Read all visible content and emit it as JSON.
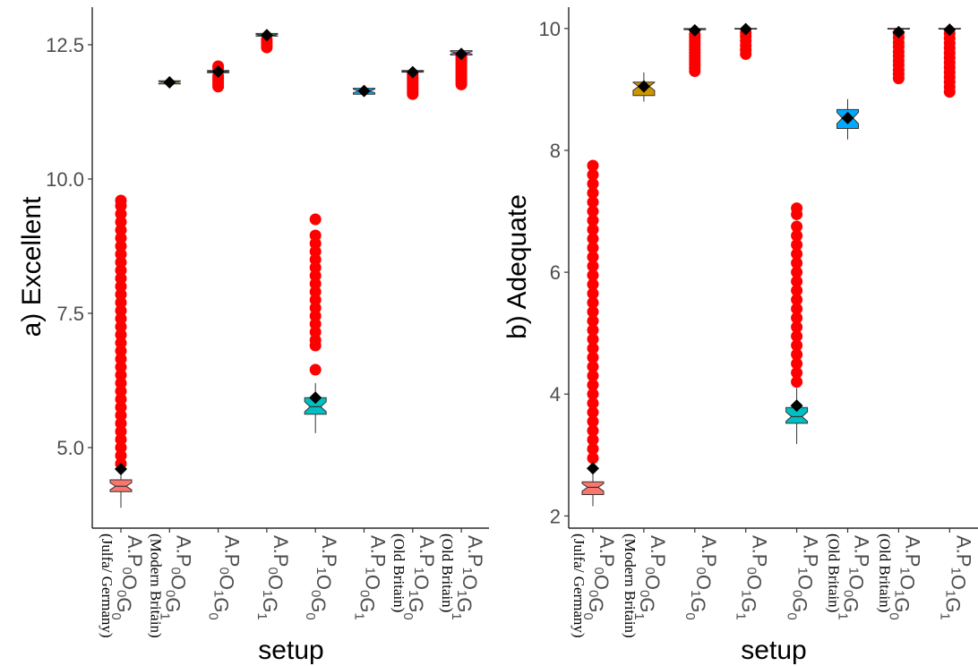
{
  "chart_data": [
    {
      "type": "boxplot",
      "panel": "a",
      "ylabel": "a) Excellent",
      "xlabel": "setup",
      "ylim": [
        3.5,
        13.2
      ],
      "yticks": [
        5.0,
        7.5,
        10.0,
        12.5
      ],
      "ytick_labels": [
        "5.0",
        "7.5",
        "10.0",
        "12.5"
      ],
      "categories": [
        {
          "main": "A.P",
          "s1": "0",
          "m2": "O",
          "s2": "0",
          "m3": "G",
          "s3": "0",
          "note": "(Julfa/ Germany)"
        },
        {
          "main": "A.P",
          "s1": "0",
          "m2": "O",
          "s2": "0",
          "m3": "G",
          "s3": "1",
          "note": "(Modern Britain)"
        },
        {
          "main": "A.P",
          "s1": "0",
          "m2": "O",
          "s2": "1",
          "m3": "G",
          "s3": "0",
          "note": ""
        },
        {
          "main": "A.P",
          "s1": "0",
          "m2": "O",
          "s2": "1",
          "m3": "G",
          "s3": "1",
          "note": ""
        },
        {
          "main": "A.P",
          "s1": "1",
          "m2": "O",
          "s2": "0",
          "m3": "G",
          "s3": "0",
          "note": ""
        },
        {
          "main": "A.P",
          "s1": "1",
          "m2": "O",
          "s2": "0",
          "m3": "G",
          "s3": "1",
          "note": ""
        },
        {
          "main": "A.P",
          "s1": "1",
          "m2": "O",
          "s2": "1",
          "m3": "G",
          "s3": "0",
          "note": "(Old Britain)"
        },
        {
          "main": "A.P",
          "s1": "1",
          "m2": "O",
          "s2": "1",
          "m3": "G",
          "s3": "1",
          "note": "(Old Britain)"
        }
      ],
      "boxes": [
        {
          "color": "#F8766D",
          "lw": 3.88,
          "q1": 4.18,
          "median": 4.28,
          "q3": 4.4,
          "uw": 4.58,
          "mean": 4.6,
          "outliers": [
            4.7,
            4.85,
            5.0,
            5.15,
            5.3,
            5.45,
            5.6,
            5.75,
            5.9,
            6.05,
            6.2,
            6.35,
            6.5,
            6.65,
            6.8,
            6.95,
            7.1,
            7.25,
            7.4,
            7.55,
            7.7,
            7.85,
            8.0,
            8.15,
            8.3,
            8.45,
            8.6,
            8.75,
            8.9,
            9.05,
            9.2,
            9.35,
            9.5,
            9.6
          ]
        },
        {
          "color": "#CD9600",
          "lw": 11.76,
          "q1": 11.77,
          "median": 11.8,
          "q3": 11.83,
          "uw": 11.84,
          "mean": 11.8,
          "outliers": []
        },
        {
          "color": "#7CAE00",
          "lw": 11.96,
          "q1": 11.98,
          "median": 12.0,
          "q3": 12.02,
          "uw": 12.04,
          "mean": 12.0,
          "outliers": [
            11.72,
            11.76,
            11.8,
            11.84,
            11.88,
            11.92,
            12.06,
            12.1
          ]
        },
        {
          "color": "#00BE67",
          "lw": 12.63,
          "q1": 12.66,
          "median": 12.68,
          "q3": 12.71,
          "uw": 12.74,
          "mean": 12.68,
          "outliers": [
            12.45,
            12.5,
            12.55,
            12.6
          ]
        },
        {
          "color": "#00BFC4",
          "lw": 5.27,
          "q1": 5.62,
          "median": 5.76,
          "q3": 5.93,
          "uw": 6.2,
          "mean": 5.93,
          "outliers": [
            6.45,
            6.9,
            7.0,
            7.15,
            7.3,
            7.45,
            7.6,
            7.75,
            7.9,
            8.05,
            8.2,
            8.35,
            8.5,
            8.65,
            8.8,
            8.95,
            9.25
          ]
        },
        {
          "color": "#00A9FF",
          "lw": 11.58,
          "q1": 11.58,
          "median": 11.64,
          "q3": 11.69,
          "uw": 11.7,
          "mean": 11.64,
          "outliers": []
        },
        {
          "color": "#C77CFF",
          "lw": 11.98,
          "q1": 11.99,
          "median": 12.0,
          "q3": 12.02,
          "uw": 12.03,
          "mean": 11.99,
          "outliers": [
            11.58,
            11.62,
            11.66,
            11.7,
            11.74,
            11.78,
            11.82,
            11.86,
            11.9,
            11.94
          ]
        },
        {
          "color": "#FF61CC",
          "lw": 12.3,
          "q1": 12.31,
          "median": 12.35,
          "q3": 12.39,
          "uw": 12.4,
          "mean": 12.33,
          "outliers": [
            11.76,
            11.8,
            11.84,
            11.88,
            11.92,
            11.96,
            12.0,
            12.04,
            12.08,
            12.12,
            12.16,
            12.2,
            12.24,
            12.28
          ]
        }
      ]
    },
    {
      "type": "boxplot",
      "panel": "b",
      "ylabel": "b) Adequate",
      "xlabel": "setup",
      "ylim": [
        1.8,
        10.35
      ],
      "yticks": [
        2,
        4,
        6,
        8,
        10
      ],
      "ytick_labels": [
        "2",
        "4",
        "6",
        "8",
        "10"
      ],
      "categories": [
        {
          "main": "A.P",
          "s1": "0",
          "m2": "O",
          "s2": "0",
          "m3": "G",
          "s3": "0",
          "note": "(Julfa/ Germany)"
        },
        {
          "main": "A.P",
          "s1": "0",
          "m2": "O",
          "s2": "0",
          "m3": "G",
          "s3": "1",
          "note": "(Modern Britain)"
        },
        {
          "main": "A.P",
          "s1": "0",
          "m2": "O",
          "s2": "1",
          "m3": "G",
          "s3": "0",
          "note": ""
        },
        {
          "main": "A.P",
          "s1": "0",
          "m2": "O",
          "s2": "1",
          "m3": "G",
          "s3": "1",
          "note": ""
        },
        {
          "main": "A.P",
          "s1": "1",
          "m2": "O",
          "s2": "0",
          "m3": "G",
          "s3": "0",
          "note": ""
        },
        {
          "main": "A.P",
          "s1": "1",
          "m2": "O",
          "s2": "0",
          "m3": "G",
          "s3": "1",
          "note": "(Old Britain)"
        },
        {
          "main": "A.P",
          "s1": "1",
          "m2": "O",
          "s2": "1",
          "m3": "G",
          "s3": "0",
          "note": "(Old Britain)"
        },
        {
          "main": "A.P",
          "s1": "1",
          "m2": "O",
          "s2": "1",
          "m3": "G",
          "s3": "1",
          "note": ""
        }
      ],
      "boxes": [
        {
          "color": "#F8766D",
          "lw": 2.16,
          "q1": 2.35,
          "median": 2.47,
          "q3": 2.56,
          "uw": 2.75,
          "mean": 2.78,
          "outliers": [
            2.95,
            3.1,
            3.25,
            3.4,
            3.55,
            3.7,
            3.85,
            4.0,
            4.15,
            4.3,
            4.45,
            4.6,
            4.75,
            4.9,
            5.05,
            5.2,
            5.35,
            5.5,
            5.65,
            5.8,
            5.95,
            6.1,
            6.25,
            6.4,
            6.55,
            6.7,
            6.85,
            7.0,
            7.15,
            7.3,
            7.45,
            7.6,
            7.75
          ]
        },
        {
          "color": "#CD9600",
          "lw": 8.8,
          "q1": 8.9,
          "median": 9.05,
          "q3": 9.12,
          "uw": 9.28,
          "mean": 9.05,
          "outliers": []
        },
        {
          "color": "#7CAE00",
          "lw": 9.97,
          "q1": 9.98,
          "median": 9.99,
          "q3": 10.0,
          "uw": 10.0,
          "mean": 9.97,
          "outliers": [
            9.3,
            9.35,
            9.4,
            9.45,
            9.5,
            9.55,
            9.6,
            9.65,
            9.7,
            9.75,
            9.8,
            9.85,
            9.9
          ]
        },
        {
          "color": "#00BE67",
          "lw": 9.98,
          "q1": 9.99,
          "median": 10.0,
          "q3": 10.0,
          "uw": 10.0,
          "mean": 9.99,
          "outliers": [
            9.58,
            9.65,
            9.72,
            9.8,
            9.87,
            9.93
          ]
        },
        {
          "color": "#00BFC4",
          "lw": 3.18,
          "q1": 3.52,
          "median": 3.63,
          "q3": 3.78,
          "uw": 4.1,
          "mean": 3.81,
          "outliers": [
            4.2,
            4.35,
            4.5,
            4.65,
            4.8,
            4.95,
            5.1,
            5.25,
            5.4,
            5.55,
            5.7,
            5.85,
            6.0,
            6.15,
            6.3,
            6.45,
            6.6,
            6.75,
            6.95,
            7.05
          ]
        },
        {
          "color": "#00A9FF",
          "lw": 8.18,
          "q1": 8.36,
          "median": 8.53,
          "q3": 8.67,
          "uw": 8.84,
          "mean": 8.53,
          "outliers": []
        },
        {
          "color": "#C77CFF",
          "lw": 9.98,
          "q1": 9.99,
          "median": 10.0,
          "q3": 10.0,
          "uw": 10.0,
          "mean": 9.94,
          "outliers": [
            9.18,
            9.25,
            9.32,
            9.4,
            9.47,
            9.55,
            9.62,
            9.7,
            9.77,
            9.85,
            9.92
          ]
        },
        {
          "color": "#FF61CC",
          "lw": 9.98,
          "q1": 9.99,
          "median": 10.0,
          "q3": 10.0,
          "uw": 10.0,
          "mean": 9.98,
          "outliers": [
            8.96,
            9.04,
            9.12,
            9.2,
            9.28,
            9.36,
            9.44,
            9.52,
            9.6,
            9.68,
            9.76,
            9.84,
            9.92
          ]
        }
      ]
    }
  ]
}
